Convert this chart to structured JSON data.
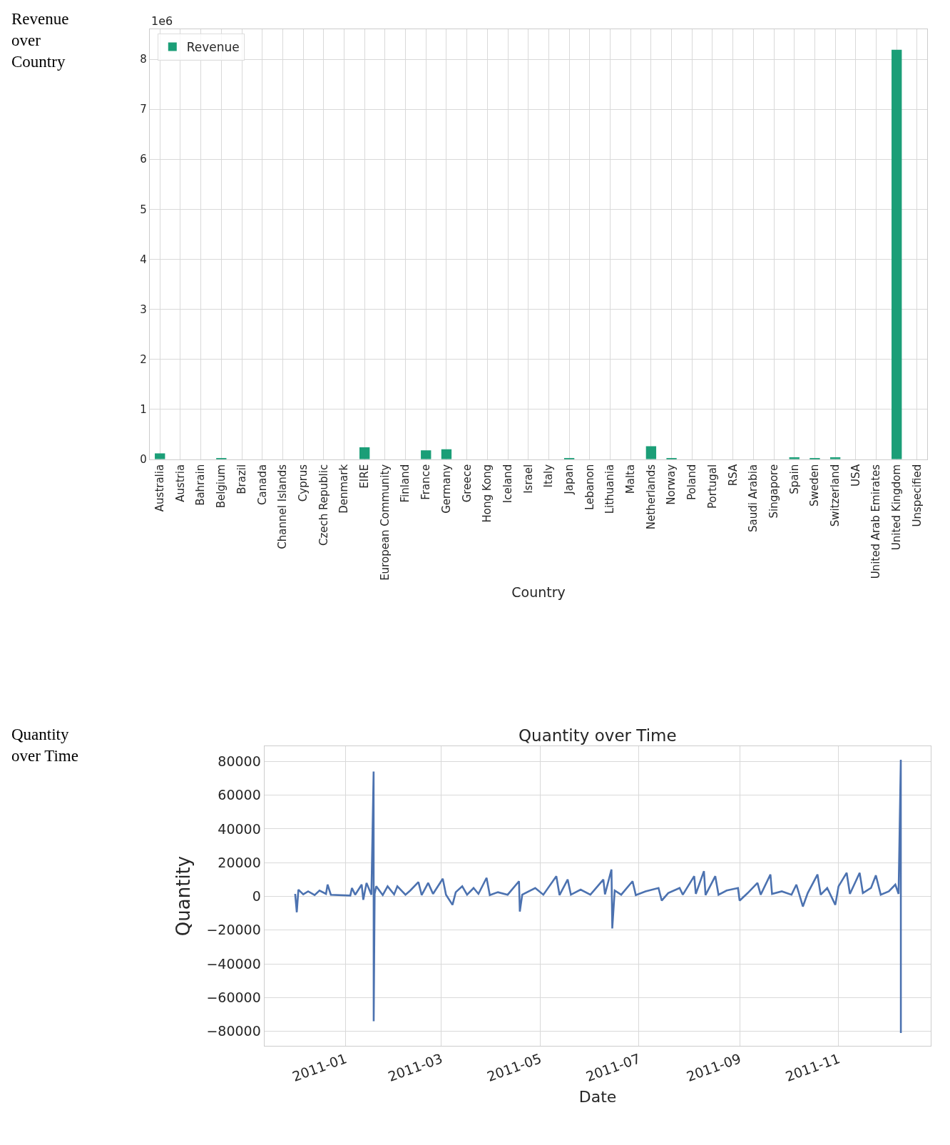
{
  "chart_data": [
    {
      "type": "bar",
      "xlabel": "Country",
      "annotations": [
        "Revenue over Country",
        "1e6"
      ],
      "categories": [
        "Australia",
        "Austria",
        "Bahrain",
        "Belgium",
        "Brazil",
        "Canada",
        "Channel Islands",
        "Cyprus",
        "Czech Republic",
        "Denmark",
        "EIRE",
        "European Community",
        "Finland",
        "France",
        "Germany",
        "Greece",
        "Hong Kong",
        "Iceland",
        "Israel",
        "Italy",
        "Japan",
        "Lebanon",
        "Lithuania",
        "Malta",
        "Netherlands",
        "Norway",
        "Poland",
        "Portugal",
        "RSA",
        "Saudi Arabia",
        "Singapore",
        "Spain",
        "Sweden",
        "Switzerland",
        "USA",
        "United Arab Emirates",
        "United Kingdom",
        "Unspecified"
      ],
      "series": [
        {
          "name": "Revenue",
          "color": "#1b9e77",
          "values": [
            0.12,
            0,
            0,
            0.02,
            0,
            0,
            0,
            0,
            0,
            0,
            0.24,
            0,
            0,
            0.18,
            0.2,
            0,
            0,
            0,
            0,
            0,
            0.02,
            0,
            0,
            0,
            0.26,
            0.02,
            0,
            0,
            0,
            0,
            0,
            0.04,
            0.02,
            0.04,
            0,
            0,
            8.19,
            0
          ]
        }
      ],
      "ylim": [
        0,
        8.6
      ],
      "yticks": [
        0,
        1,
        2,
        3,
        4,
        5,
        6,
        7,
        8
      ],
      "grid": true,
      "legend": "top left"
    },
    {
      "type": "line",
      "title": "Quantity over Time",
      "xlabel": "Date",
      "ylabel": "Quantity",
      "annotations": [
        "Quantity over Time"
      ],
      "series": [
        {
          "color": "#4c72b0",
          "x": [
            "2010-12-01",
            "2010-12-02",
            "2010-12-03",
            "2010-12-06",
            "2010-12-09",
            "2010-12-13",
            "2010-12-16",
            "2010-12-20",
            "2010-12-21",
            "2010-12-23",
            "2011-01-04",
            "2011-01-05",
            "2011-01-07",
            "2011-01-11",
            "2011-01-12",
            "2011-01-14",
            "2011-01-17",
            "2011-01-18T09:00",
            "2011-01-18T10:00",
            "2011-01-19",
            "2011-01-20",
            "2011-01-24",
            "2011-01-27",
            "2011-01-31",
            "2011-02-02",
            "2011-02-07",
            "2011-02-10",
            "2011-02-15",
            "2011-02-17",
            "2011-02-21",
            "2011-02-24",
            "2011-03-02",
            "2011-03-04",
            "2011-03-08",
            "2011-03-10",
            "2011-03-14",
            "2011-03-17",
            "2011-03-21",
            "2011-03-24",
            "2011-03-29",
            "2011-03-31",
            "2011-04-05",
            "2011-04-11",
            "2011-04-18",
            "2011-04-18T12:00",
            "2011-04-20",
            "2011-04-28",
            "2011-05-03",
            "2011-05-11",
            "2011-05-13",
            "2011-05-18",
            "2011-05-20",
            "2011-05-26",
            "2011-06-01",
            "2011-06-09",
            "2011-06-10",
            "2011-06-14",
            "2011-06-14T12:00",
            "2011-06-16",
            "2011-06-20",
            "2011-06-27",
            "2011-06-29",
            "2011-07-05",
            "2011-07-13",
            "2011-07-15",
            "2011-07-19",
            "2011-07-26",
            "2011-07-28",
            "2011-08-04",
            "2011-08-05",
            "2011-08-10",
            "2011-08-11",
            "2011-08-17",
            "2011-08-19",
            "2011-08-24",
            "2011-08-31",
            "2011-09-01",
            "2011-09-06",
            "2011-09-12",
            "2011-09-14",
            "2011-09-20",
            "2011-09-21",
            "2011-09-27",
            "2011-10-03",
            "2011-10-06",
            "2011-10-10",
            "2011-10-13",
            "2011-10-19",
            "2011-10-21",
            "2011-10-25",
            "2011-10-30",
            "2011-11-01",
            "2011-11-06",
            "2011-11-08",
            "2011-11-14",
            "2011-11-16",
            "2011-11-21",
            "2011-11-24",
            "2011-11-27",
            "2011-12-02",
            "2011-12-06",
            "2011-12-08",
            "2011-12-09T09:00",
            "2011-12-09T10:00"
          ],
          "values": [
            1500,
            -9400,
            4000,
            1200,
            3000,
            800,
            3500,
            1500,
            7000,
            1000,
            500,
            5000,
            1000,
            7000,
            -2000,
            8000,
            1000,
            74000,
            -74000,
            1500,
            6000,
            800,
            6000,
            1200,
            6000,
            1000,
            3500,
            8500,
            800,
            8000,
            1500,
            10500,
            1000,
            -5000,
            2500,
            6000,
            1000,
            5000,
            1500,
            11000,
            800,
            2500,
            1000,
            9000,
            -9000,
            1000,
            5000,
            1000,
            12000,
            800,
            10000,
            1000,
            4000,
            1000,
            10000,
            1200,
            16000,
            -19000,
            3500,
            1000,
            9000,
            800,
            3000,
            5000,
            -2500,
            2000,
            5000,
            1000,
            12000,
            1500,
            15000,
            800,
            12000,
            1000,
            3500,
            5000,
            -2500,
            2000,
            8000,
            1000,
            13000,
            1500,
            3000,
            1000,
            7000,
            -6000,
            2000,
            13000,
            1000,
            5000,
            -5000,
            6000,
            14000,
            1500,
            14000,
            2000,
            5000,
            12500,
            1000,
            3000,
            7000,
            1500,
            81000,
            -81000
          ]
        }
      ],
      "xlim": [
        "2010-11-12",
        "2011-12-28"
      ],
      "xticks": [
        {
          "value": "2011-01-01",
          "label": "2011-01"
        },
        {
          "value": "2011-03-01",
          "label": "2011-03"
        },
        {
          "value": "2011-05-01",
          "label": "2011-05"
        },
        {
          "value": "2011-07-01",
          "label": "2011-07"
        },
        {
          "value": "2011-09-01",
          "label": "2011-09"
        },
        {
          "value": "2011-11-01",
          "label": "2011-11"
        }
      ],
      "ylim": [
        -88500,
        89000
      ],
      "yticks": [
        {
          "value": -80000,
          "label": "−80000"
        },
        {
          "value": -60000,
          "label": "−60000"
        },
        {
          "value": -40000,
          "label": "−40000"
        },
        {
          "value": -20000,
          "label": "−20000"
        },
        0,
        20000,
        40000,
        60000,
        80000
      ],
      "grid": true,
      "legend": false,
      "line_style": "solid",
      "marker": "none"
    }
  ]
}
